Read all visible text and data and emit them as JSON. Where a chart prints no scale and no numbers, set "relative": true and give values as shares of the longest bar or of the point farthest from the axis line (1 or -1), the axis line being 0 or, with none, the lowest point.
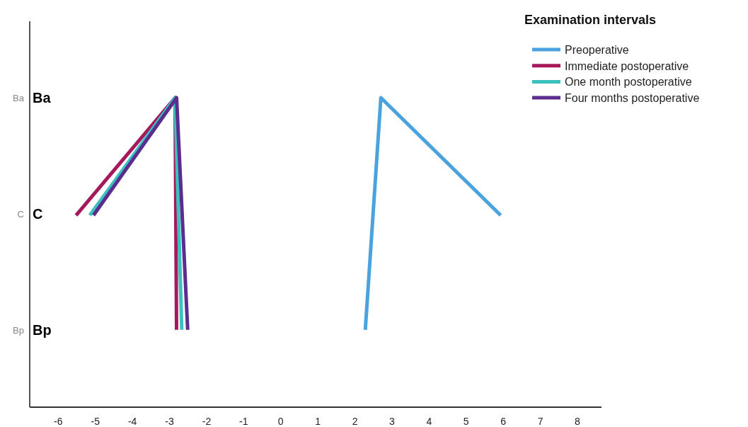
{
  "chart_data": {
    "type": "line",
    "relative": true,
    "legend_title": "Examination intervals",
    "legend": "top right",
    "xlim": [
      -6.77,
      8.65
    ],
    "xticks": [
      -6,
      -5,
      -4,
      -3,
      -2,
      -1,
      0,
      1,
      2,
      3,
      4,
      5,
      6,
      7,
      8
    ],
    "grid": false,
    "marker": "none",
    "line_style": "solid",
    "annotations": [
      "Ba",
      "C",
      "Bp",
      "Ba",
      "C",
      "Bp"
    ],
    "series": [
      {
        "name": "Preoperative",
        "color": "#4aa3df",
        "x": [
          2.28,
          2.7,
          5.93
        ],
        "values": [
          0.25,
          1,
          0.62
        ]
      },
      {
        "name": "Immediate postoperative",
        "color": "#a3195b",
        "x": [
          -5.52,
          -2.85,
          -2.81
        ],
        "values": [
          0.62,
          1,
          0.25
        ]
      },
      {
        "name": "One month postoperative",
        "color": "#3cc1c0",
        "x": [
          -5.15,
          -2.85,
          -2.67
        ],
        "values": [
          0.62,
          1,
          0.25
        ]
      },
      {
        "name": "Four months postoperative",
        "color": "#5b2d8e",
        "x": [
          -5.05,
          -2.81,
          -2.51
        ],
        "values": [
          0.62,
          1,
          0.25
        ]
      }
    ]
  }
}
